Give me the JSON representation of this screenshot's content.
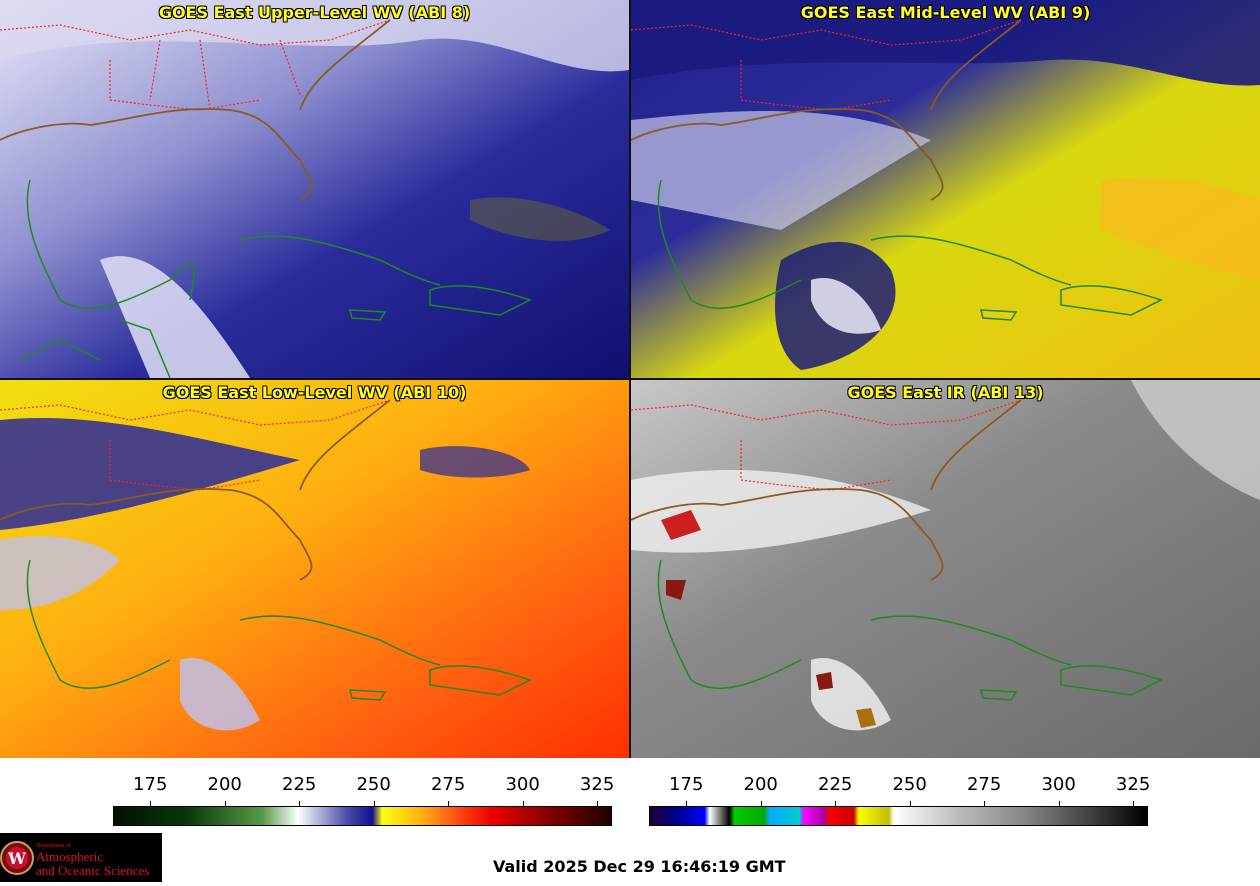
{
  "panels": [
    {
      "title": "GOES East Upper-Level WV (ABI 8)"
    },
    {
      "title": "GOES East Mid-Level WV (ABI 9)"
    },
    {
      "title": "GOES East Low-Level WV (ABI 10)"
    },
    {
      "title": "GOES East IR (ABI 13)"
    }
  ],
  "colorbars": {
    "wv": {
      "ticks": [
        "175",
        "200",
        "225",
        "250",
        "275",
        "300",
        "325"
      ]
    },
    "ir": {
      "ticks": [
        "175",
        "200",
        "225",
        "250",
        "275",
        "300",
        "325"
      ]
    }
  },
  "logo": {
    "dept": "Department of",
    "line1": "Atmospheric",
    "line2": "and Oceanic Sciences",
    "seal_letter": "W"
  },
  "valid_time": "Valid 2025 Dec 29 16:46:19 GMT",
  "colors": {
    "state_borders": "#ff2020",
    "coastlines": "#1f8a1f",
    "title_text": "#ffff22",
    "logo_text": "#e0102a"
  }
}
